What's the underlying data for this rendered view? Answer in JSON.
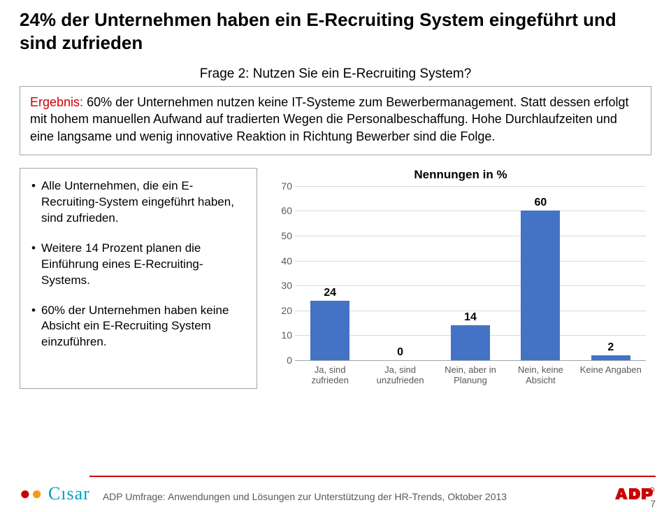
{
  "title": "24% der Unternehmen haben ein E-Recruiting System eingeführt und sind zufrieden",
  "question": "Frage 2: Nutzen Sie ein E-Recruiting System?",
  "ergebnis": {
    "label": "Ergebnis:",
    "text": "60% der Unternehmen nutzen keine IT-Systeme zum Bewerbermanagement. Statt dessen erfolgt mit hohem manuellen Aufwand auf tradierten Wegen die Personalbeschaffung. Hohe Durchlaufzeiten und eine langsame und wenig innovative Reaktion in Richtung Bewerber sind die Folge."
  },
  "bullets": [
    "Alle Unternehmen, die ein E-Recruiting-System eingeführt haben, sind zufrieden.",
    "Weitere 14 Prozent planen die Einführung eines E-Recruiting- Systems.",
    "60% der Unternehmen haben keine Absicht ein E-Recruiting System einzuführen."
  ],
  "chart": {
    "type": "bar",
    "title": "Nennungen in %",
    "categories": [
      "Ja, sind zufrieden",
      "Ja, sind unzufrieden",
      "Nein, aber in Planung",
      "Nein, keine Absicht",
      "Keine Angaben"
    ],
    "values": [
      24,
      0,
      14,
      60,
      2
    ],
    "bar_color": "#4472c4",
    "ylim": [
      0,
      70
    ],
    "ytick_step": 10,
    "grid_color": "#d9d9d9",
    "axis_color": "#9aa6b2",
    "label_color": "#595959",
    "value_label_color": "#000000",
    "title_fontsize": 17,
    "label_fontsize": 13,
    "value_fontsize": 16,
    "background_color": "#ffffff"
  },
  "footer": {
    "source": "ADP Umfrage: Anwendungen und Lösungen zur Unterstützung der HR-Trends, Oktober 2013",
    "page": "7",
    "cisar": "Cısar",
    "line_color": "#cc0000"
  }
}
